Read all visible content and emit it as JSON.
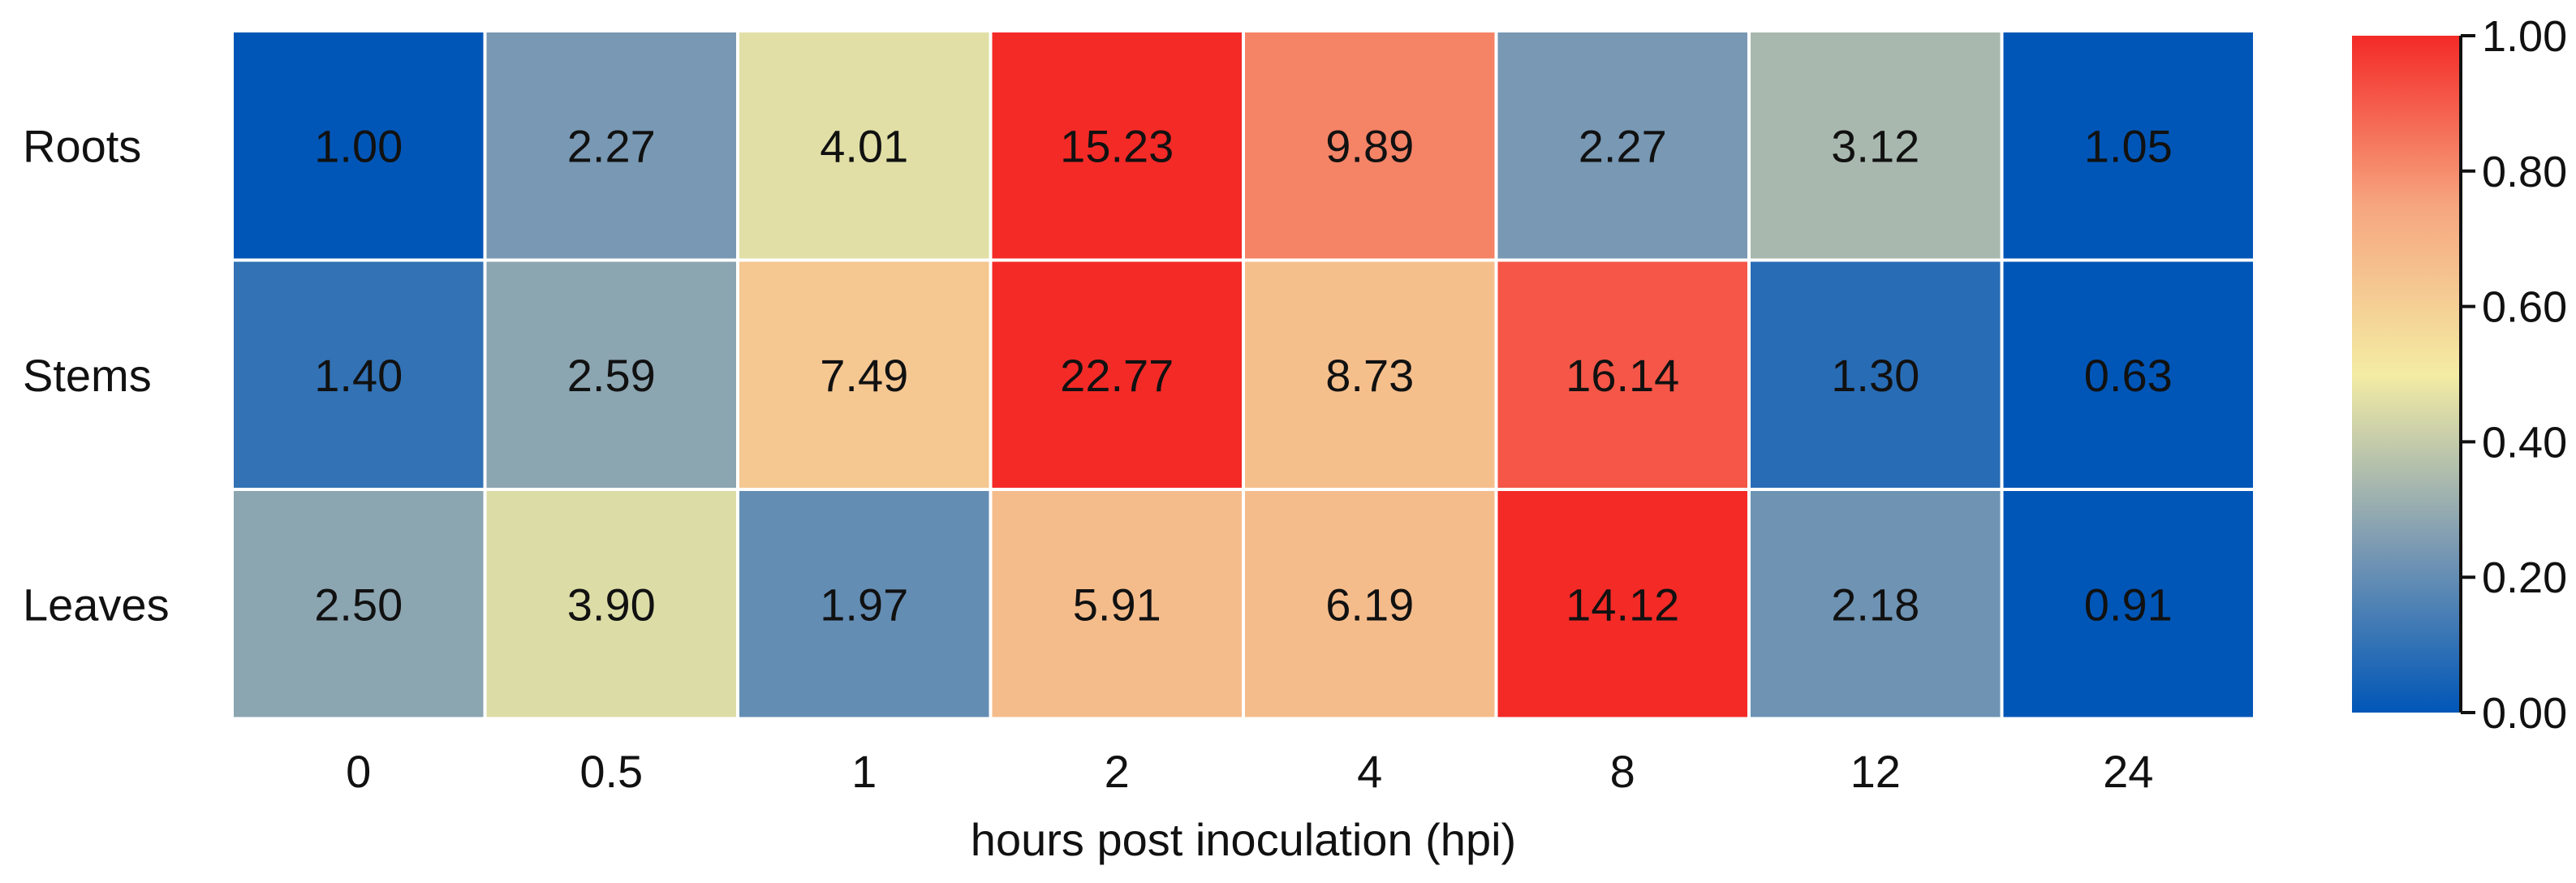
{
  "chart_data": {
    "type": "heatmap",
    "title": "",
    "xlabel": "hours post inoculation (hpi)",
    "ylabel": "",
    "x_categories": [
      "0",
      "0.5",
      "1",
      "2",
      "4",
      "8",
      "12",
      "24"
    ],
    "y_categories": [
      "Roots",
      "Stems",
      "Leaves"
    ],
    "values": [
      [
        1.0,
        2.27,
        4.01,
        15.23,
        9.89,
        2.27,
        3.12,
        1.05
      ],
      [
        1.4,
        2.59,
        7.49,
        22.77,
        8.73,
        16.14,
        1.3,
        0.63
      ],
      [
        2.5,
        3.9,
        1.97,
        5.91,
        6.19,
        14.12,
        2.18,
        0.91
      ]
    ],
    "value_labels": [
      [
        "1.00",
        "2.27",
        "4.01",
        "15.23",
        "9.89",
        "2.27",
        "3.12",
        "1.05"
      ],
      [
        "1.40",
        "2.59",
        "7.49",
        "22.77",
        "8.73",
        "16.14",
        "1.30",
        "0.63"
      ],
      [
        "2.50",
        "3.90",
        "1.97",
        "5.91",
        "6.19",
        "14.12",
        "2.18",
        "0.91"
      ]
    ],
    "cell_color_level": [
      [
        0.0,
        0.24,
        0.46,
        1.0,
        0.82,
        0.24,
        0.34,
        0.0
      ],
      [
        0.1,
        0.28,
        0.63,
        1.0,
        0.66,
        0.91,
        0.08,
        0.0
      ],
      [
        0.28,
        0.45,
        0.2,
        0.67,
        0.67,
        1.0,
        0.22,
        0.0
      ]
    ],
    "colorbar": {
      "range": [
        0,
        1
      ],
      "ticks": [
        "0.00",
        "0.20",
        "0.40",
        "0.60",
        "0.80",
        "1.00"
      ],
      "colors": [
        "#0056b7",
        "#7d9bb3",
        "#f4eca4",
        "#f6a57f",
        "#f42a27"
      ]
    },
    "grid": true,
    "legend": "colorbar-right"
  }
}
